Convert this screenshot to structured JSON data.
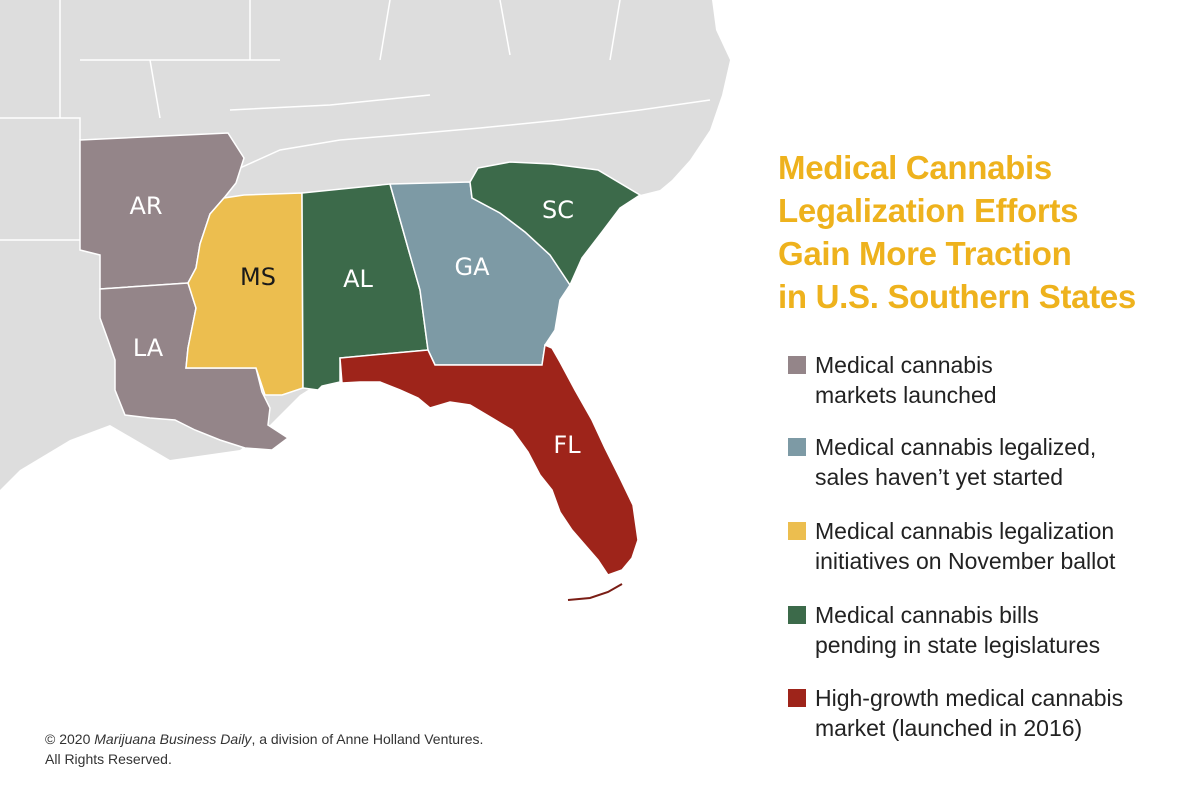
{
  "title": {
    "lines": [
      "Medical Cannabis",
      "Legalization Efforts",
      "Gain More Traction",
      "in U.S. Southern States"
    ]
  },
  "colors": {
    "title": "#eeb21d",
    "background_land": "#dddddd",
    "borders": "#ffffff",
    "launched": "#948589",
    "legalized": "#7d9aa5",
    "ballot": "#ecbe4f",
    "pending": "#3c6a4a",
    "high_growth": "#9e241a"
  },
  "states": [
    {
      "abbr": "AR",
      "status": "launched"
    },
    {
      "abbr": "LA",
      "status": "launched"
    },
    {
      "abbr": "MS",
      "status": "ballot"
    },
    {
      "abbr": "AL",
      "status": "pending"
    },
    {
      "abbr": "GA",
      "status": "legalized"
    },
    {
      "abbr": "SC",
      "status": "pending"
    },
    {
      "abbr": "FL",
      "status": "high_growth"
    }
  ],
  "legend": [
    {
      "key": "launched",
      "lines": [
        "Medical cannabis",
        "markets launched"
      ]
    },
    {
      "key": "legalized",
      "lines": [
        "Medical cannabis legalized,",
        "sales haven’t yet started"
      ]
    },
    {
      "key": "ballot",
      "lines": [
        "Medical cannabis legalization",
        "initiatives on November ballot"
      ]
    },
    {
      "key": "pending",
      "lines": [
        "Medical cannabis bills",
        "pending in state legislatures"
      ]
    },
    {
      "key": "high_growth",
      "lines": [
        "High-growth medical cannabis",
        "market (launched in 2016)"
      ]
    }
  ],
  "footer": {
    "prefix": "© 2020 ",
    "publication": "Marijuana Business Daily",
    "suffix": ", a division of Anne Holland Ventures.",
    "line2": "All Rights Reserved."
  }
}
